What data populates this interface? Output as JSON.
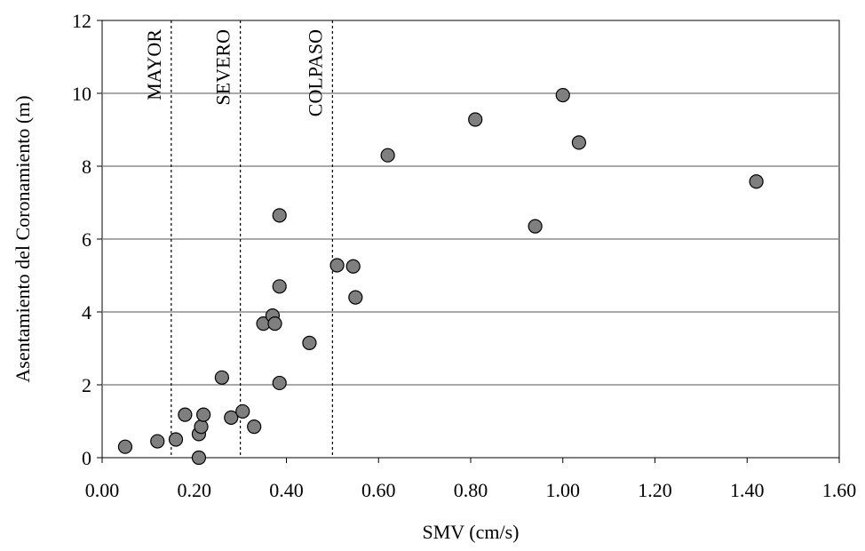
{
  "chart_data": {
    "type": "scatter",
    "title": "",
    "xlabel": "SMV (cm/s)",
    "ylabel": "Asentamiento del Coronamiento (m)",
    "xlim": [
      0,
      1.6
    ],
    "ylim": [
      0,
      12
    ],
    "x_ticks": [
      "0.00",
      "0.20",
      "0.40",
      "0.60",
      "0.80",
      "1.00",
      "1.20",
      "1.40",
      "1.60"
    ],
    "y_ticks": [
      "0",
      "2",
      "4",
      "6",
      "8",
      "10",
      "12"
    ],
    "grid": "horizontal",
    "marker_color": "#7f7f7f",
    "marker_edge": "#000000",
    "points": [
      {
        "x": 0.05,
        "y": 0.3
      },
      {
        "x": 0.12,
        "y": 0.45
      },
      {
        "x": 0.16,
        "y": 0.5
      },
      {
        "x": 0.18,
        "y": 1.18
      },
      {
        "x": 0.21,
        "y": 0.65
      },
      {
        "x": 0.215,
        "y": 0.85
      },
      {
        "x": 0.22,
        "y": 1.18
      },
      {
        "x": 0.21,
        "y": 0.0
      },
      {
        "x": 0.26,
        "y": 2.2
      },
      {
        "x": 0.28,
        "y": 1.1
      },
      {
        "x": 0.305,
        "y": 1.27
      },
      {
        "x": 0.33,
        "y": 0.85
      },
      {
        "x": 0.35,
        "y": 3.68
      },
      {
        "x": 0.37,
        "y": 3.9
      },
      {
        "x": 0.375,
        "y": 3.68
      },
      {
        "x": 0.385,
        "y": 2.05
      },
      {
        "x": 0.385,
        "y": 4.7
      },
      {
        "x": 0.385,
        "y": 6.65
      },
      {
        "x": 0.45,
        "y": 3.15
      },
      {
        "x": 0.51,
        "y": 5.28
      },
      {
        "x": 0.545,
        "y": 5.25
      },
      {
        "x": 0.55,
        "y": 4.4
      },
      {
        "x": 0.62,
        "y": 8.3
      },
      {
        "x": 0.81,
        "y": 9.28
      },
      {
        "x": 0.94,
        "y": 6.35
      },
      {
        "x": 1.0,
        "y": 9.95
      },
      {
        "x": 1.035,
        "y": 8.65
      },
      {
        "x": 1.42,
        "y": 7.58
      }
    ],
    "thresholds": [
      {
        "x": 0.15,
        "label": "MAYOR"
      },
      {
        "x": 0.3,
        "label": "SEVERO"
      },
      {
        "x": 0.5,
        "label": "COLPASO"
      }
    ]
  }
}
